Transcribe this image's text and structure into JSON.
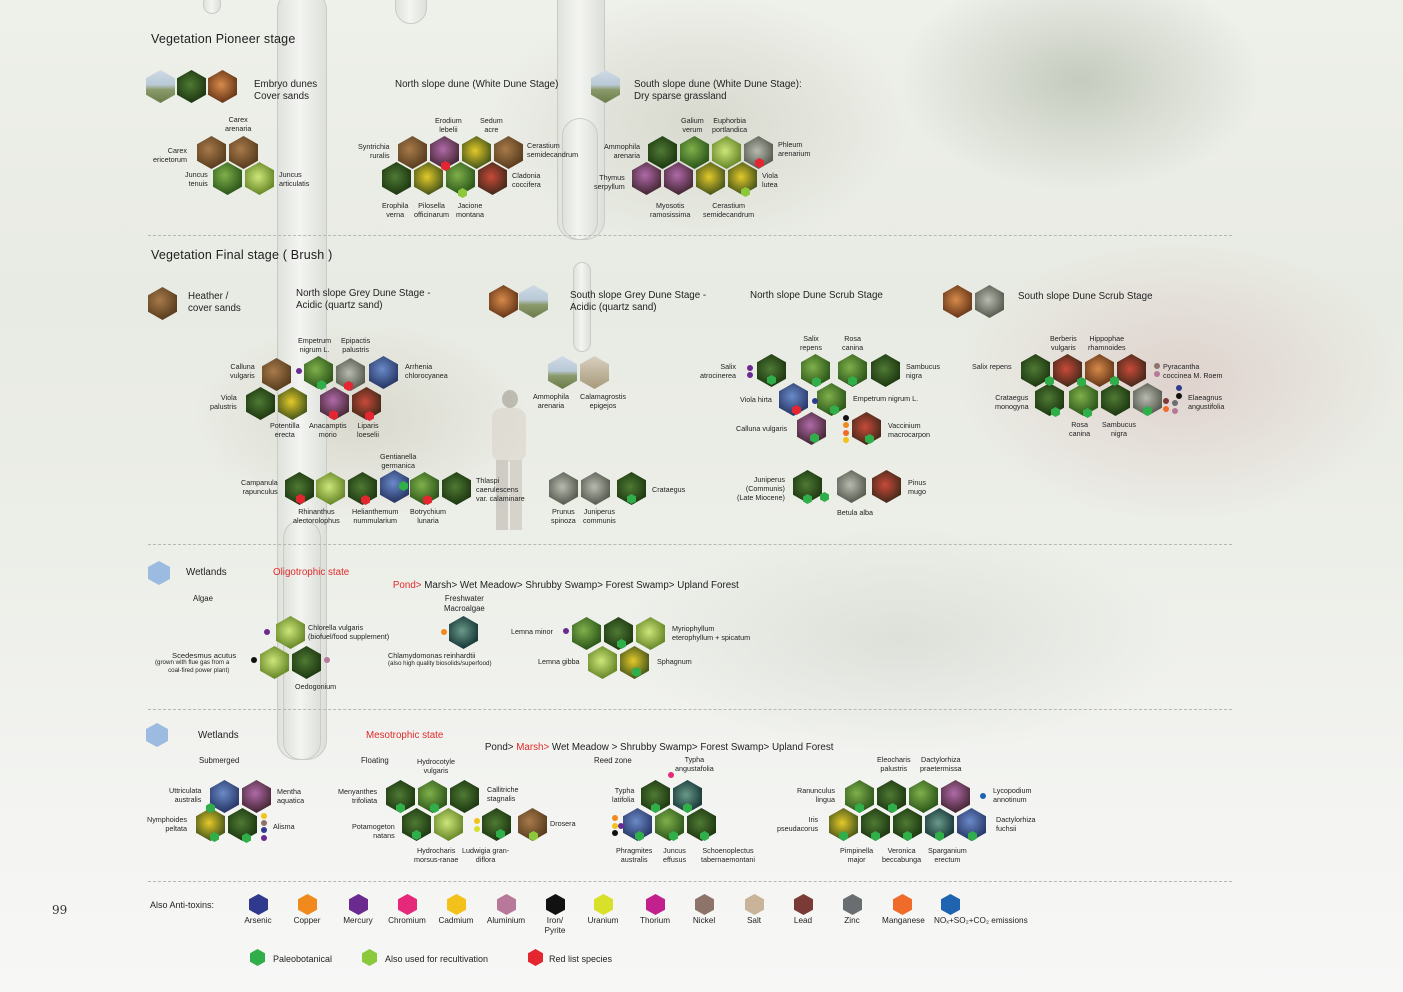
{
  "page_number": "99",
  "pioneer": {
    "title": "Vegetation Pioneer stage",
    "embryo": "Embryo dunes\nCover sands",
    "north": "North slope dune (White Dune Stage)",
    "south": "South slope dune (White Dune Stage):\nDry sparse grassland",
    "sp": {
      "carex_arenaria": "Carex\narenaria",
      "carex_ericetorum": "Carex\nericetorum",
      "juncus_tenuis": "Juncus\ntenuis",
      "juncus_articulatis": "Juncus\narticulatis",
      "erodium": "Erodium\nlebelii",
      "sedum": "Sedum\nacre",
      "syntrichia": "Syntrichia\nruralis",
      "cerastium1": "Cerastium\nsemidecandrum",
      "cladonia": "Cladonia\ncoccifera",
      "erophila": "Erophila\nverna",
      "pilosella": "Pilosella\nofficinarum",
      "jacione": "Jacione\nmontana",
      "galium": "Galium\nverum",
      "euphorbia": "Euphorbia\nportlandica",
      "ammophila1": "Ammophila\narenaria",
      "phleum": "Phleum\narenarium",
      "thymus": "Thymus\nserpyllum",
      "viola_lutea": "Viola\nlutea",
      "myosotis": "Myosotis\nramosissima",
      "cerastium2": "Cerastium\nsemidecandrum"
    }
  },
  "final": {
    "title": "Vegetation Final stage ( Brush )",
    "heather": "Heather /\ncover sands",
    "north_grey": "North slope Grey Dune Stage -\nAcidic (quartz sand)",
    "south_grey": "South slope Grey Dune Stage -\nAcidic (quartz sand)",
    "north_scrub": "North slope Dune Scrub Stage",
    "south_scrub": "South slope Dune Scrub Stage",
    "sp": {
      "empetrum1": "Empetrum\nnigrum L.",
      "epipactis": "Epipactis\npalustris",
      "calluna1": "Calluna\nvulgaris",
      "arrhenia": "Arrhenia\nchlorocyanea",
      "viola_pal": "Viola\npalustris",
      "potentilla": "Potentilla\nerecta",
      "anacamptis": "Anacamptis\nmorio",
      "liparis": "Liparis\nloeselii",
      "gentianella": "Gentianella\ngermanica",
      "campanula": "Campanula\nrapunculus",
      "thlaspi": "Thlaspi\ncaerulescens\nvar. calaminare",
      "rhinanthus": "Rhinanthus\nalectorolophus",
      "helianthemum": "Helianthemum\nnummularium",
      "botrychium": "Botrychium\nlunaria",
      "ammophila2": "Ammophila\narenaria",
      "calamagrostis": "Calamagrostis\nepigejos",
      "prunus": "Prunus\nspinoza",
      "juniperus1": "Juniperus\ncommunis",
      "crataegus1": "Crataegus",
      "salix_repens1": "Salix\nrepens",
      "rosa1": "Rosa\ncanina",
      "salix_atro": "Salix\natrocinerea",
      "sambucus1": "Sambucus\nnigra",
      "viola_hirta": "Viola hirta",
      "empetrum2": "Empetrum nigrum L.",
      "calluna2": "Calluna vulgaris",
      "vaccinium": "Vaccinium\nmacrocarpon",
      "juniperus2": "Juniperus\n(Communis)\n(Late Miocene)",
      "pinus": "Pinus\nmugo",
      "betula": "Betula alba",
      "berberis": "Berberis\nvulgaris",
      "hippophae": "Hippophae\nrhamnoides",
      "salix_repens2": "Salix repens",
      "pyracantha": "Pyracantha\ncoccinea M. Roem",
      "crataegus2": "Crataegus\nmonogyna",
      "elaeagnus": "Elaeagnus\nangustifolia",
      "rosa2": "Rosa\ncanina",
      "sambucus2": "Sambucus\nnigra"
    }
  },
  "wet1": {
    "title": "Wetlands",
    "state": "Oligotrophic state",
    "seq_red": "Pond>",
    "seq_rest": " Marsh> Wet Meadow> Shrubby Swamp> Forest Swamp> Upland Forest",
    "algae": "Algae",
    "macroalgae": "Freshwater\nMacroalgae",
    "sp": {
      "chlorella": "Chlorella vulgaris\n(biofuel/food supplement)",
      "scedesmus_t": "Scedesmus acutus",
      "scedesmus_n": "(grown with flue gas from a\ncoal-fired power plant)",
      "oedogonium": "Oedogonium",
      "chlamy_t": "Chlamydomonas reinhardtii",
      "chlamy_n": "(also high quality biosolids/superfood)",
      "lemna_minor": "Lemna minor",
      "myriophyllum": "Myriophyllum\neterophyllum + spicatum",
      "lemna_gibba": "Lemna gibba",
      "sphagnum": "Sphagnum"
    }
  },
  "wet2": {
    "title": "Wetlands",
    "state": "Mesotrophic state",
    "seq_a": "Pond>",
    "seq_red": " Marsh>",
    "seq_rest": " Wet Meadow > Shrubby Swamp> Forest Swamp> Upland Forest",
    "submerged": "Submerged",
    "floating": "Floating",
    "reed": "Reed zone",
    "sp": {
      "uttricularia": "Uttriculata\naustralis",
      "mentha": "Mentha\naquatica",
      "nymphoides": "Nymphoides\npeltata",
      "alisma": "Alisma",
      "hydrocotyle": "Hydrocotyle\nvulgaris",
      "menyanthes": "Menyanthes\ntrifoliata",
      "callitriche": "Callitriche\nstagnalis",
      "potamogeton": "Potamogeton\nnatans",
      "drosera": "Drosera",
      "hydrocharis": "Hydrocharis\nmorsus-ranae",
      "ludwigia": "Ludwigia gran-\ndiflora",
      "typha_ang": "Typha\nangustafolia",
      "typha_lat": "Typha\nlatifolia",
      "phragmites": "Phragmites\naustralis",
      "juncus_eff": "Juncus\neffusus",
      "schoenoplectus": "Schoenoplectus\ntabernaemontani",
      "eleocharis": "Eleocharis\npalustris",
      "dactylorhiza_p": "Dactylorhiza\npraetermissa",
      "ranunculus": "Ranunculus\nlingua",
      "lycopodium": "Lycopodium\nannotinum",
      "iris": "Iris\npseudacorus",
      "dactylorhiza_f": "Dactylorhiza\nfuchsii",
      "pimpinella": "Pimpinella\nmajor",
      "veronica": "Veronica\nbeccabunga",
      "sparganium": "Sparganium\nerectum"
    }
  },
  "legend": {
    "title": "Also Anti-toxins:",
    "toxins": [
      {
        "label": "Arsenic",
        "color": "#2f3a8f"
      },
      {
        "label": "Copper",
        "color": "#f08a1c"
      },
      {
        "label": "Mercury",
        "color": "#6a2a90"
      },
      {
        "label": "Chromium",
        "color": "#e6287a"
      },
      {
        "label": "Cadmium",
        "color": "#f2c21a"
      },
      {
        "label": "Aluminium",
        "color": "#b8789a"
      },
      {
        "label": "Iron/\nPyrite",
        "color": "#111111"
      },
      {
        "label": "Uranium",
        "color": "#d8e02a"
      },
      {
        "label": "Thorium",
        "color": "#c2208c"
      },
      {
        "label": "Nickel",
        "color": "#8e7368"
      },
      {
        "label": "Salt",
        "color": "#c9b49a"
      },
      {
        "label": "Lead",
        "color": "#7a3a36"
      },
      {
        "label": "Zinc",
        "color": "#6b6e70"
      },
      {
        "label": "Manganese",
        "color": "#f06a2a"
      },
      {
        "label": "NOₓ+SO₂+CO₂ emissions",
        "color": "#1f64b0"
      }
    ],
    "markers": [
      {
        "label": "Paleobotanical",
        "color": "#2fae4a"
      },
      {
        "label": "Also used for recultivation",
        "color": "#8cc83c"
      },
      {
        "label": "Red list species",
        "color": "#e42631"
      }
    ]
  }
}
